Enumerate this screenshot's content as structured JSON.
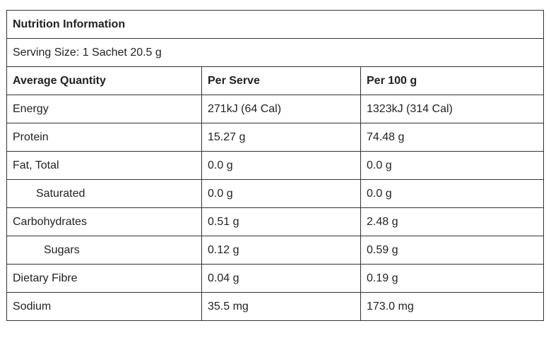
{
  "title": "Nutrition Information",
  "serving_size": "Serving Size: 1 Sachet 20.5 g",
  "table": {
    "header": [
      "Average Quantity",
      "Per Serve",
      "Per 100 g"
    ],
    "rows": [
      [
        "Energy",
        "271kJ (64 Cal)",
        "1323kJ (314 Cal)"
      ],
      [
        "Protein",
        "15.27 g",
        "74.48 g"
      ],
      [
        "Fat, Total",
        "0.0 g",
        "0.0 g"
      ],
      [
        "Saturated",
        "0.0 g",
        "0.0 g"
      ],
      [
        "Carbohydrates",
        "0.51 g",
        "2.48 g"
      ],
      [
        "Sugars",
        "0.12 g",
        "0.59 g"
      ],
      [
        "Dietary Fibre",
        "0.04 g",
        "0.19 g"
      ],
      [
        "Sodium",
        "35.5 mg",
        "173.0 mg"
      ]
    ]
  }
}
